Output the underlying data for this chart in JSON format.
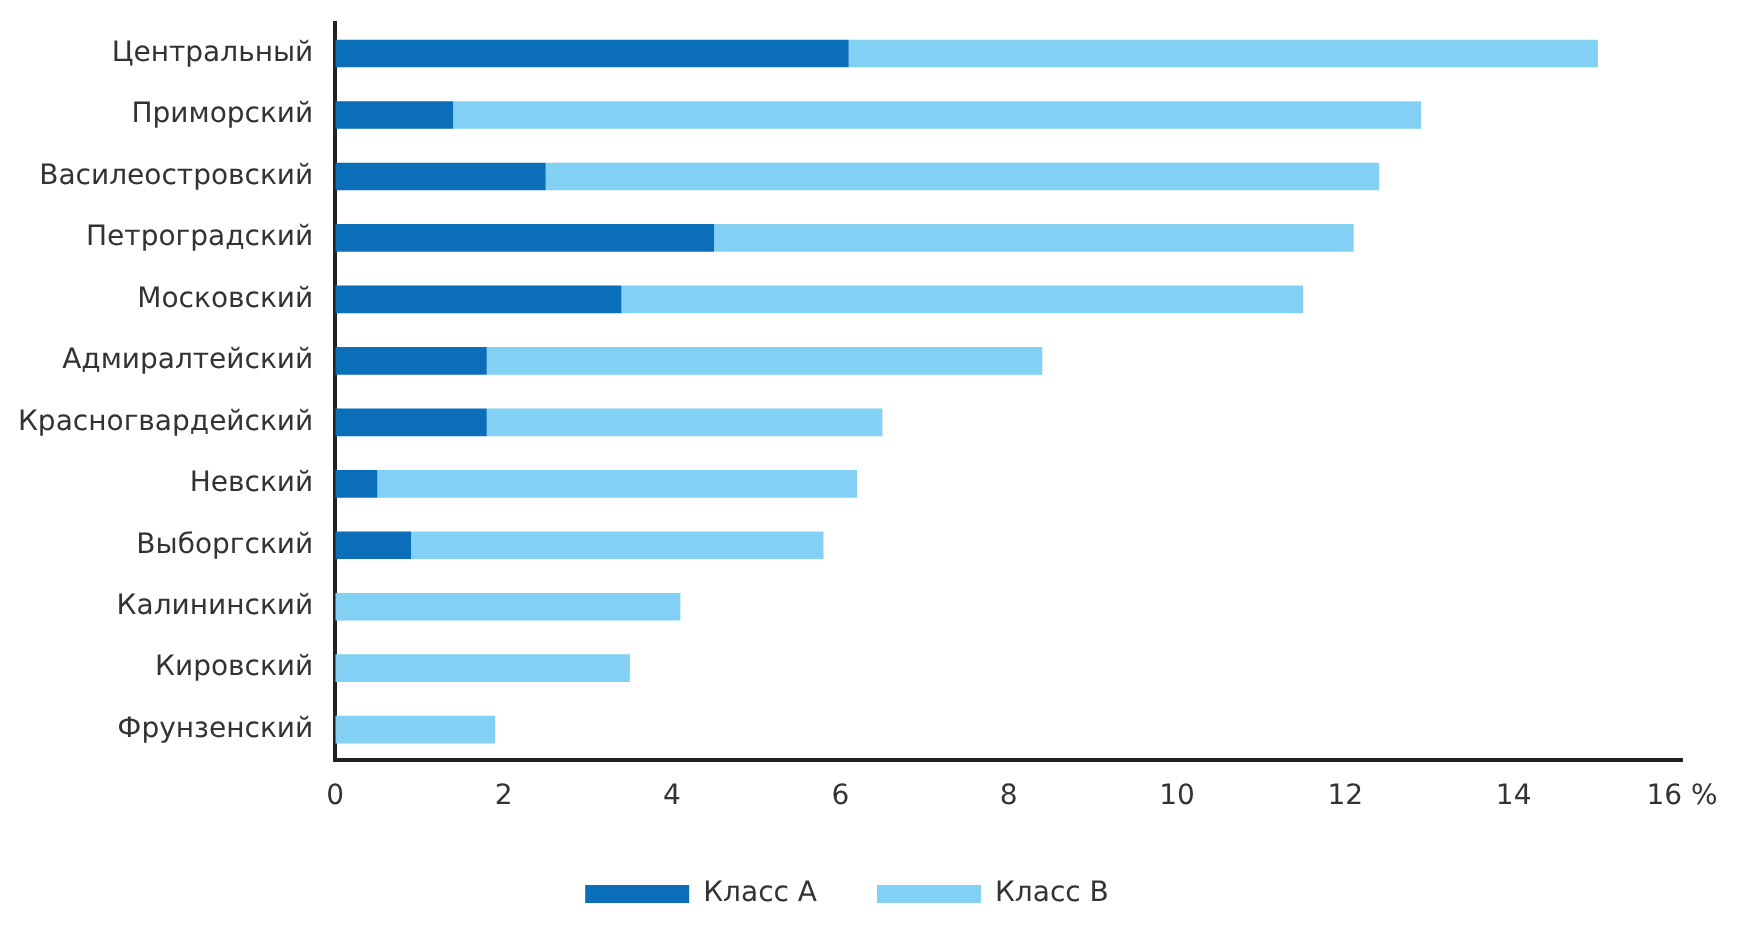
{
  "chart_data": {
    "type": "bar",
    "orientation": "horizontal",
    "stacked": true,
    "grid": false,
    "legend": "bottom",
    "categories": [
      "Центральный",
      "Приморский",
      "Василеостровский",
      "Петроградский",
      "Московский",
      "Адмиралтейский",
      "Красногвардейский",
      "Невский",
      "Выборгский",
      "Калининский",
      "Кировский",
      "Фрунзенский"
    ],
    "series": [
      {
        "name": "Класс А",
        "color": "#0a6fb8",
        "values": [
          6.1,
          1.4,
          2.5,
          4.5,
          3.4,
          1.8,
          1.8,
          0.5,
          0.9,
          0,
          0,
          0
        ]
      },
      {
        "name": "Класс В",
        "color": "#82d0f4",
        "values": [
          8.9,
          11.5,
          9.9,
          7.6,
          8.1,
          6.6,
          4.7,
          5.7,
          4.9,
          4.1,
          3.5,
          1.9
        ]
      }
    ],
    "xlim": [
      0,
      16
    ],
    "xticks": [
      0,
      2,
      4,
      6,
      8,
      10,
      12,
      14,
      {
        "value": 16,
        "label": "16 %"
      }
    ]
  }
}
